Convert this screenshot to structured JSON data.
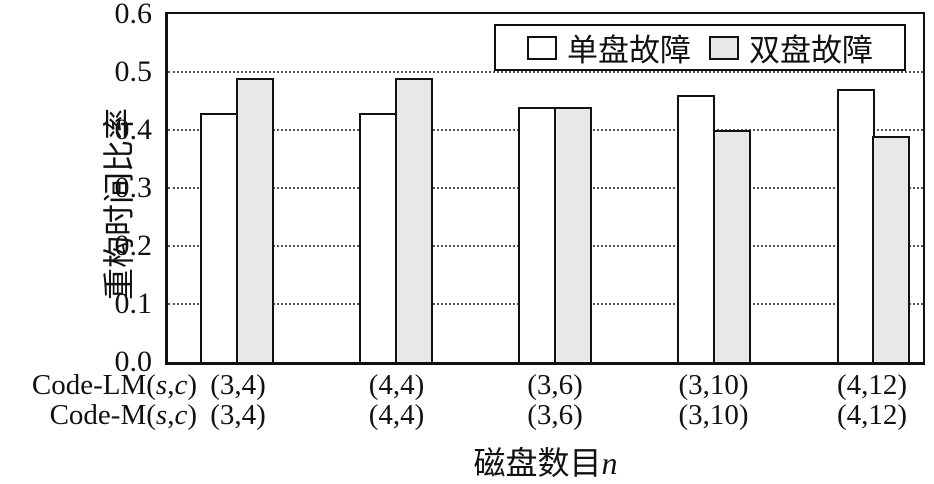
{
  "figure": {
    "background": "#ffffff",
    "axis_color": "#111111",
    "gridline_color": "#555555"
  },
  "chart_data": {
    "type": "bar",
    "title": "",
    "ylabel": "重构时间比率",
    "xlabel": "磁盘数目n",
    "ylim": [
      0.0,
      0.6
    ],
    "ytick_labels": [
      "0.0",
      "0.1",
      "0.2",
      "0.3",
      "0.4",
      "0.5",
      "0.6"
    ],
    "grid": "horizontal-dotted",
    "legend": {
      "position": "top-right-inside",
      "entries": [
        {
          "label": "单盘故障",
          "fill": "#ffffff"
        },
        {
          "label": "双盘故障",
          "fill": "#e8e8e8"
        }
      ]
    },
    "x_axis_rows": [
      {
        "label": "Code-LM(s,c)",
        "ticks": [
          "(3,4)",
          "(4,4)",
          "(3,6)",
          "(3,10)",
          "(4,12)"
        ]
      },
      {
        "label": "Code-M(s,c)",
        "ticks": [
          "(3,4)",
          "(4,4)",
          "(3,6)",
          "(3,10)",
          "(4,12)"
        ]
      }
    ],
    "series": [
      {
        "name": "单盘故障",
        "fill": "#ffffff",
        "values": [
          0.43,
          0.43,
          0.44,
          0.46,
          0.47
        ]
      },
      {
        "name": "双盘故障",
        "fill": "#e8e8e8",
        "values": [
          0.49,
          0.49,
          0.44,
          0.4,
          0.39
        ]
      }
    ]
  }
}
